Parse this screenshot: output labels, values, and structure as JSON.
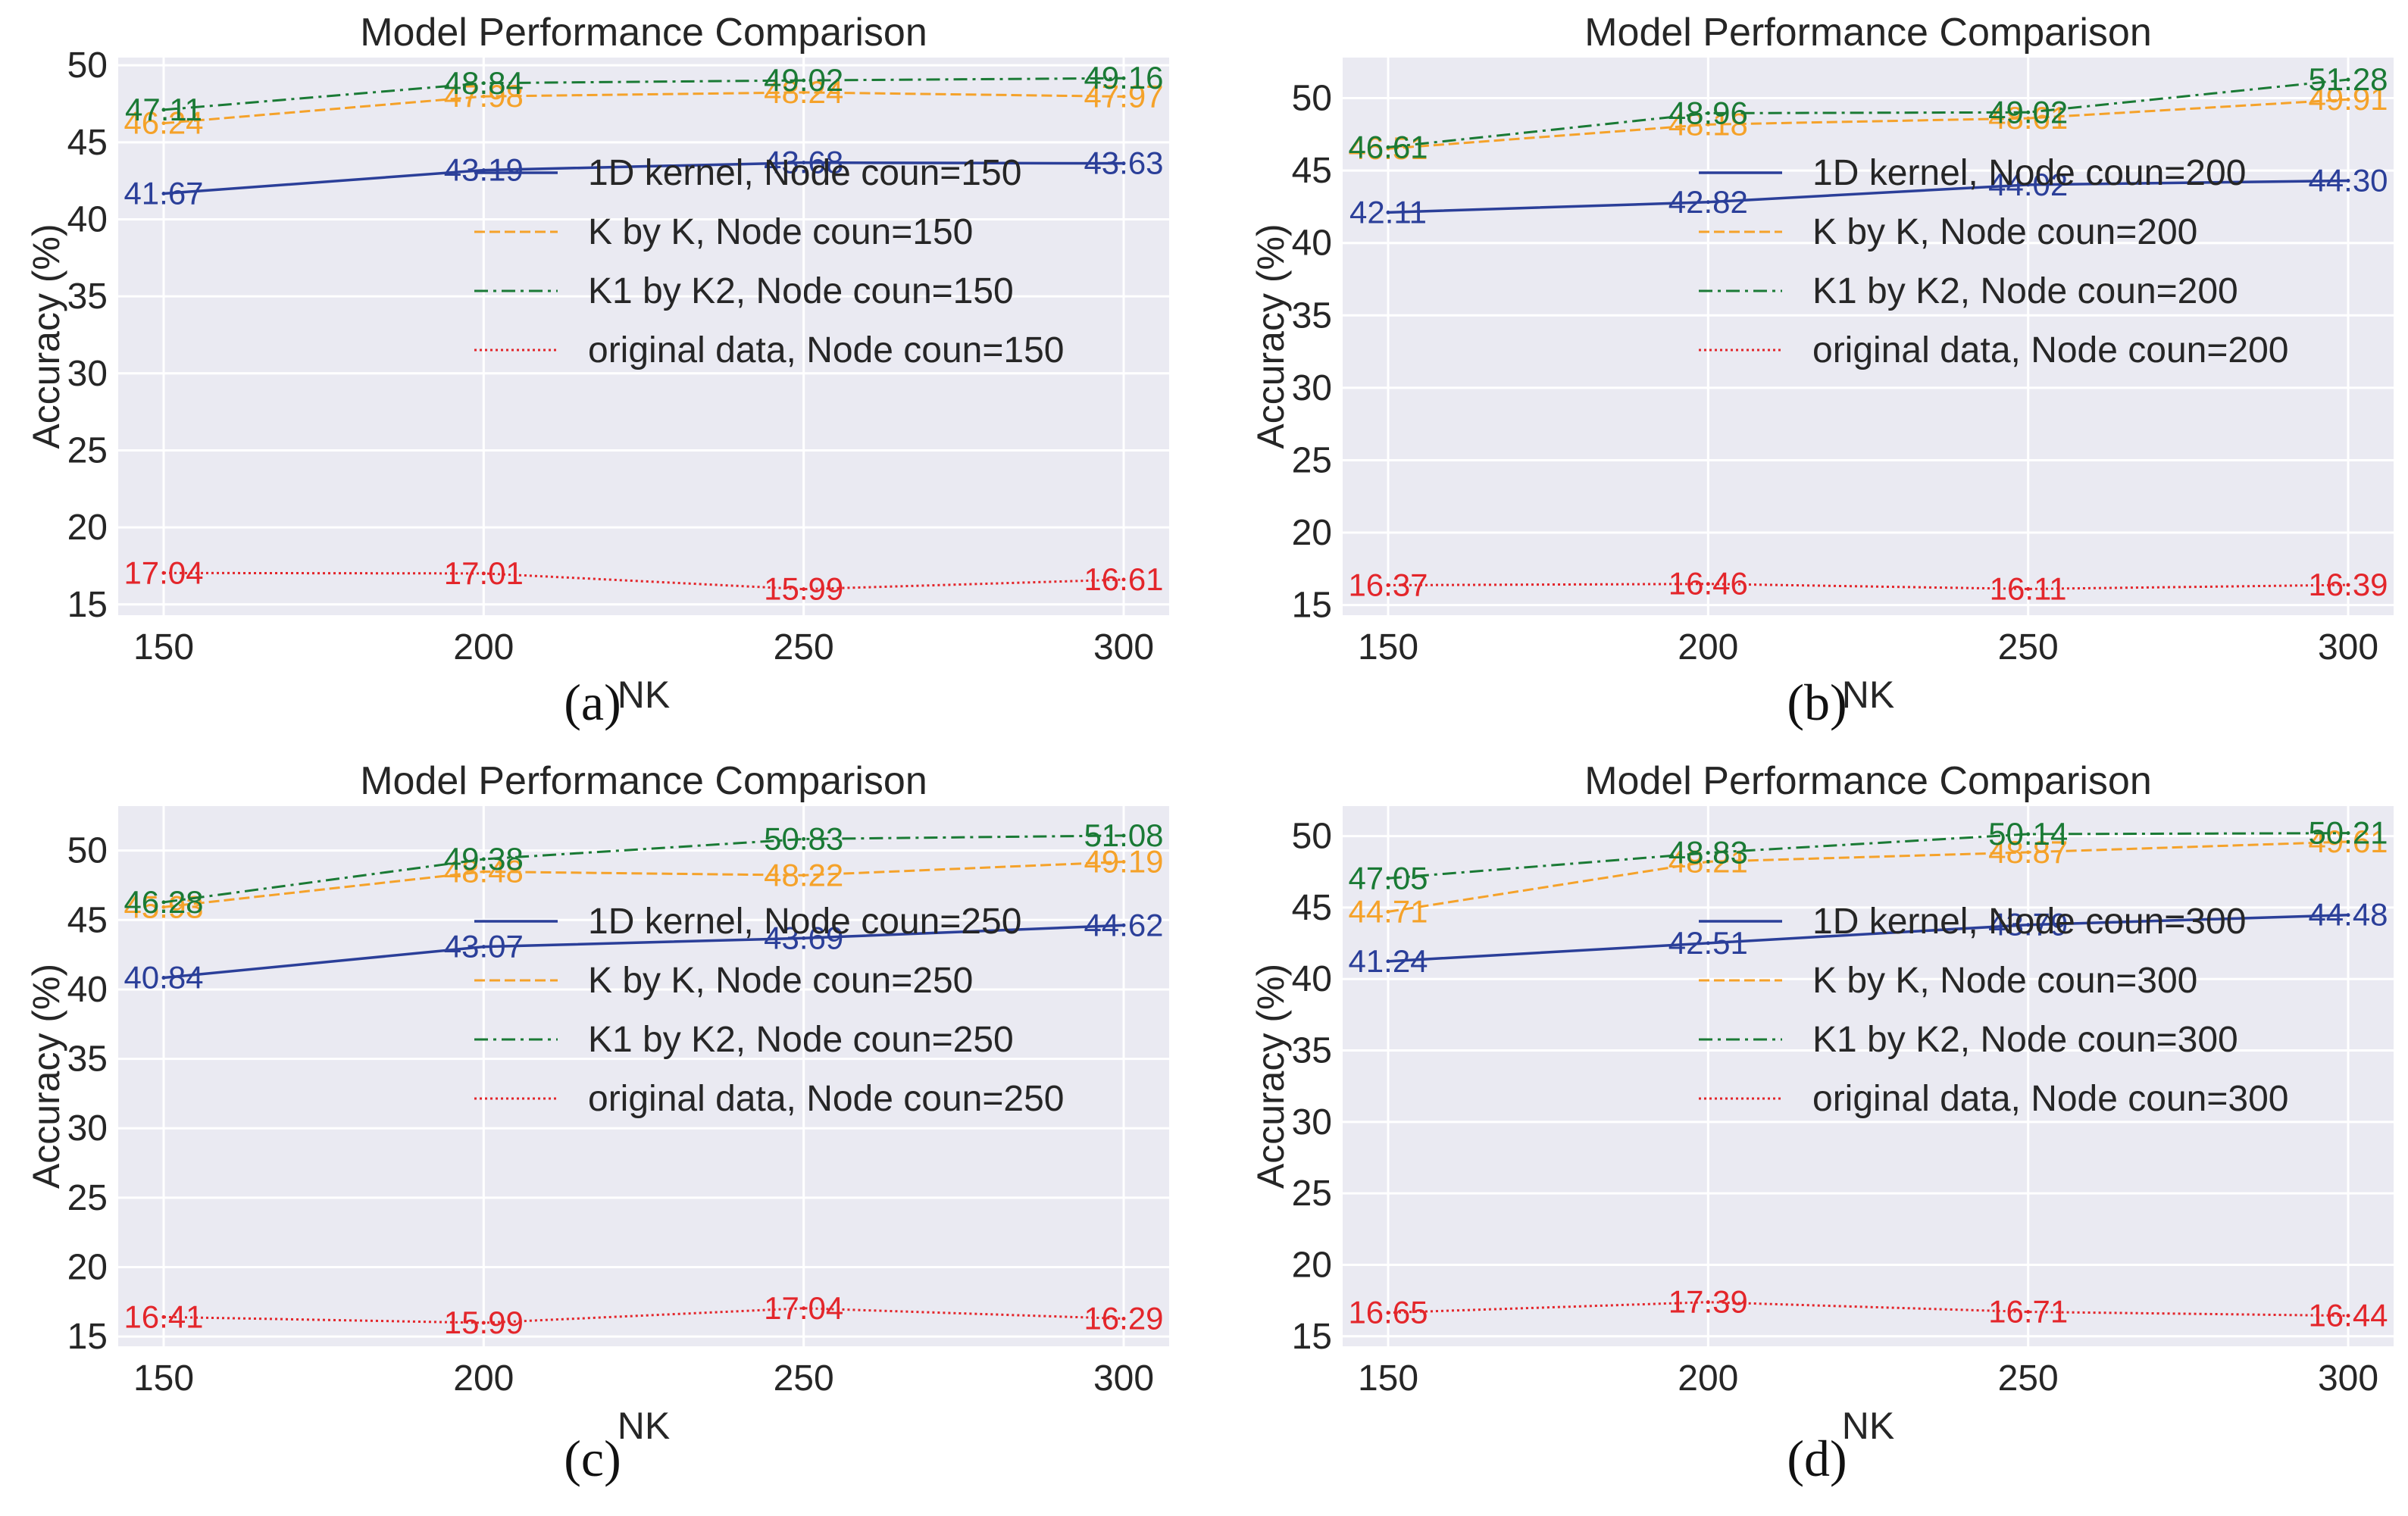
{
  "colors": {
    "plot_bg": "#eaeaf2",
    "grid": "#ffffff",
    "series": [
      "#2b3f99",
      "#f5a22a",
      "#1a7a35",
      "#e3262b"
    ]
  },
  "chart_data": [
    {
      "type": "line",
      "caption": "(a)",
      "title": "Model Performance Comparison",
      "xlabel": "NK",
      "ylabel": "Accuracy (%)",
      "x": [
        150,
        200,
        250,
        300
      ],
      "xticks": [
        "150",
        "200",
        "250",
        "300"
      ],
      "yticks": [
        "15",
        "20",
        "25",
        "30",
        "35",
        "40",
        "45",
        "50"
      ],
      "ylim": [
        14.3,
        50.5
      ],
      "grid": true,
      "legend_position": "center-right",
      "series": [
        {
          "name": "1D kernel, Node coun=150",
          "style": "solid",
          "values": [
            41.67,
            43.19,
            43.68,
            43.63
          ],
          "labels": [
            "41.67",
            "43.19",
            "43.68",
            "43.63"
          ]
        },
        {
          "name": "K by K, Node coun=150",
          "style": "dashed",
          "values": [
            46.24,
            47.98,
            48.24,
            47.97
          ],
          "labels": [
            "46.24",
            "47.98",
            "48.24",
            "47.97"
          ]
        },
        {
          "name": "K1 by K2, Node coun=150",
          "style": "dashdot",
          "values": [
            47.11,
            48.84,
            49.02,
            49.16
          ],
          "labels": [
            "47.11",
            "48.84",
            "49.02",
            "49.16"
          ]
        },
        {
          "name": "original data, Node coun=150",
          "style": "dotted",
          "values": [
            17.04,
            17.01,
            15.99,
            16.61
          ],
          "labels": [
            "17.04",
            "17.01",
            "15.99",
            "16.61"
          ]
        }
      ]
    },
    {
      "type": "line",
      "caption": "(b)",
      "title": "Model Performance Comparison",
      "xlabel": "NK",
      "ylabel": "Accuracy (%)",
      "x": [
        150,
        200,
        250,
        300
      ],
      "xticks": [
        "150",
        "200",
        "250",
        "300"
      ],
      "yticks": [
        "15",
        "20",
        "25",
        "30",
        "35",
        "40",
        "45",
        "50"
      ],
      "ylim": [
        14.3,
        52.8
      ],
      "grid": true,
      "legend_position": "center-right",
      "series": [
        {
          "name": "1D kernel, Node coun=200",
          "style": "solid",
          "values": [
            42.11,
            42.82,
            44.02,
            44.3
          ],
          "labels": [
            "42.11",
            "42.82",
            "44.02",
            "44.30"
          ]
        },
        {
          "name": "K by K, Node coun=200",
          "style": "dashed",
          "values": [
            46.51,
            48.18,
            48.61,
            49.91
          ],
          "labels": [
            "46.51",
            "48.18",
            "48.61",
            "49.91"
          ]
        },
        {
          "name": "K1 by K2, Node coun=200",
          "style": "dashdot",
          "values": [
            46.61,
            48.96,
            49.02,
            51.28
          ],
          "labels": [
            "46.61",
            "48.96",
            "49.02",
            "51.28"
          ]
        },
        {
          "name": "original data, Node coun=200",
          "style": "dotted",
          "values": [
            16.37,
            16.46,
            16.11,
            16.39
          ],
          "labels": [
            "16.37",
            "16.46",
            "16.11",
            "16.39"
          ]
        }
      ]
    },
    {
      "type": "line",
      "caption": "(c)",
      "title": "Model Performance Comparison",
      "xlabel": "NK",
      "ylabel": "Accuracy (%)",
      "x": [
        150,
        200,
        250,
        300
      ],
      "xticks": [
        "150",
        "200",
        "250",
        "300"
      ],
      "yticks": [
        "15",
        "20",
        "25",
        "30",
        "35",
        "40",
        "45",
        "50"
      ],
      "ylim": [
        14.3,
        53.2
      ],
      "grid": true,
      "legend_position": "center-right",
      "series": [
        {
          "name": "1D kernel, Node coun=250",
          "style": "solid",
          "values": [
            40.84,
            43.07,
            43.69,
            44.62
          ],
          "labels": [
            "40.84",
            "43.07",
            "43.69",
            "44.62"
          ]
        },
        {
          "name": "K by K, Node coun=250",
          "style": "dashed",
          "values": [
            45.93,
            48.48,
            48.22,
            49.19
          ],
          "labels": [
            "45.93",
            "48.48",
            "48.22",
            "49.19"
          ]
        },
        {
          "name": "K1 by K2, Node coun=250",
          "style": "dashdot",
          "values": [
            46.28,
            49.38,
            50.83,
            51.08
          ],
          "labels": [
            "46.28",
            "49.38",
            "50.83",
            "51.08"
          ]
        },
        {
          "name": "original data, Node coun=250",
          "style": "dotted",
          "values": [
            16.41,
            15.99,
            17.04,
            16.29
          ],
          "labels": [
            "16.41",
            "15.99",
            "17.04",
            "16.29"
          ]
        }
      ]
    },
    {
      "type": "line",
      "caption": "(d)",
      "title": "Model Performance Comparison",
      "xlabel": "NK",
      "ylabel": "Accuracy (%)",
      "x": [
        150,
        200,
        250,
        300
      ],
      "xticks": [
        "150",
        "200",
        "250",
        "300"
      ],
      "yticks": [
        "15",
        "20",
        "25",
        "30",
        "35",
        "40",
        "45",
        "50"
      ],
      "ylim": [
        14.3,
        52.1
      ],
      "grid": true,
      "legend_position": "center-right",
      "series": [
        {
          "name": "1D kernel, Node coun=300",
          "style": "solid",
          "values": [
            41.24,
            42.51,
            43.79,
            44.48
          ],
          "labels": [
            "41.24",
            "42.51",
            "43.79",
            "44.48"
          ]
        },
        {
          "name": "K by K, Node coun=300",
          "style": "dashed",
          "values": [
            44.71,
            48.21,
            48.87,
            49.61
          ],
          "labels": [
            "44.71",
            "48.21",
            "48.87",
            "49.61"
          ]
        },
        {
          "name": "K1 by K2, Node coun=300",
          "style": "dashdot",
          "values": [
            47.05,
            48.83,
            50.14,
            50.21
          ],
          "labels": [
            "47.05",
            "48.83",
            "50.14",
            "50.21"
          ]
        },
        {
          "name": "original data, Node coun=300",
          "style": "dotted",
          "values": [
            16.65,
            17.39,
            16.71,
            16.44
          ],
          "labels": [
            "16.65",
            "17.39",
            "16.71",
            "16.44"
          ]
        }
      ]
    }
  ]
}
